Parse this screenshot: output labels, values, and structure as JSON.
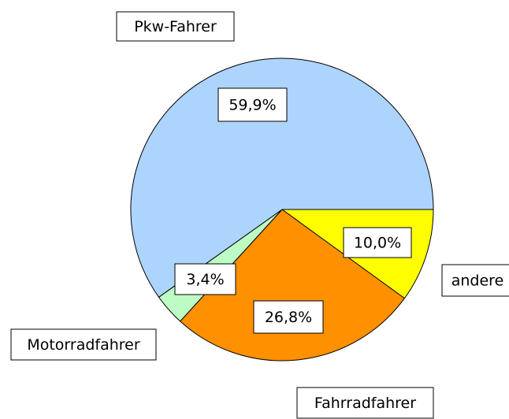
{
  "chart_data": {
    "type": "pie",
    "categories": [
      "andere",
      "Fahrradfahrer",
      "Motorradfahrer",
      "Pkw-Fahrer"
    ],
    "values": [
      10.0,
      26.8,
      3.4,
      59.9
    ],
    "value_labels": [
      "10,0%",
      "26,8%",
      "3,4%",
      "59,9%"
    ],
    "colors": [
      "#ffff00",
      "#ff9000",
      "#bdfcc4",
      "#add4fc"
    ]
  }
}
